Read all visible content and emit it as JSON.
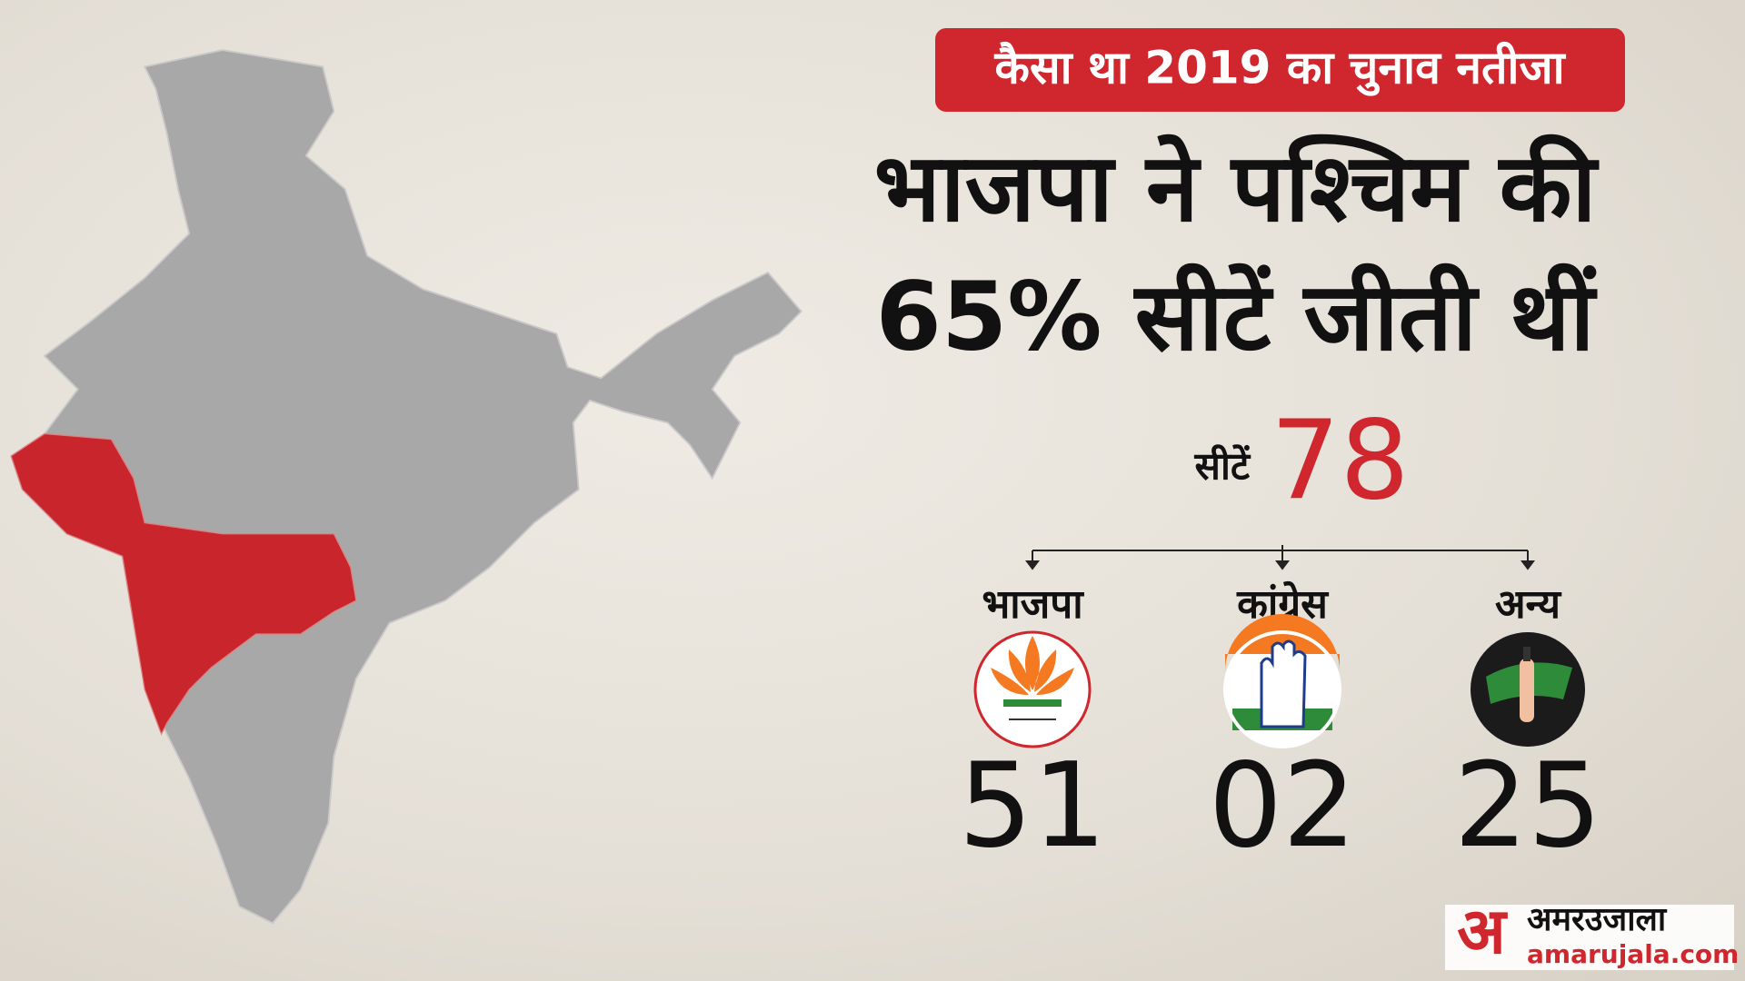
{
  "header": {
    "badge": "कैसा था 2019 का चुनाव नतीजा",
    "headline": [
      "भाजपा ने पश्चिम की",
      "65% सीटें जीती थीं"
    ]
  },
  "total": {
    "label": "सीटें",
    "value": "78"
  },
  "parties": [
    {
      "name": "भाजपा",
      "seats": "51"
    },
    {
      "name": "कांग्रेस",
      "seats": "02"
    },
    {
      "name": "अन्य",
      "seats": "25"
    }
  ],
  "brand": {
    "mark": "अ",
    "name": "अमरउजाला",
    "site": "amarujala.com"
  }
}
